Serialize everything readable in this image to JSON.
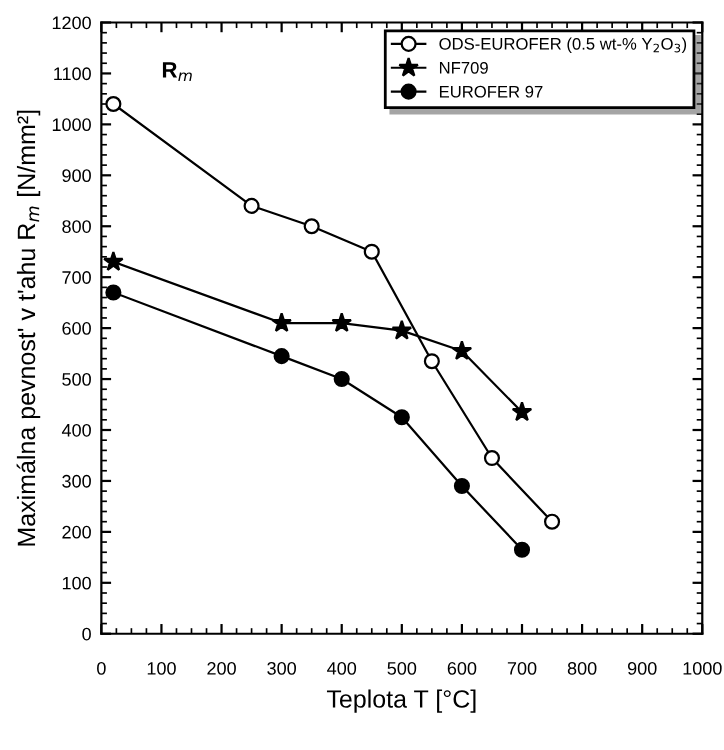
{
  "chart_data": {
    "type": "line",
    "xlabel": "Teplota T [°C]",
    "ylabel": "Maximálna pevnost' v t'ahu R$_{m}$ [N/mm²]",
    "annotations": [
      "R$_{m}$"
    ],
    "xlim": [
      0,
      1000
    ],
    "ylim": [
      0,
      1200
    ],
    "xticks": [
      0,
      100,
      200,
      300,
      400,
      500,
      600,
      700,
      800,
      900,
      1000
    ],
    "yticks": [
      0,
      100,
      200,
      300,
      400,
      500,
      600,
      700,
      800,
      900,
      1000,
      1100,
      1200
    ],
    "grid": false,
    "legend": "top right",
    "line_style": "solid",
    "series": [
      {
        "name": "ODS-EUROFER (0.5 wt-% Y$_{2}$O$_{3}$)",
        "color": "#ffffff",
        "marker": "circle",
        "x": [
          20,
          250,
          350,
          450,
          550,
          650,
          750
        ],
        "values": [
          1040,
          840,
          800,
          750,
          535,
          345,
          220
        ]
      },
      {
        "name": "NF709",
        "color": "#000000",
        "marker": "star",
        "x": [
          20,
          300,
          400,
          500,
          600,
          700
        ],
        "values": [
          730,
          610,
          610,
          595,
          555,
          435
        ]
      },
      {
        "name": "EUROFER 97",
        "color": "#000000",
        "marker": "circle",
        "x": [
          20,
          300,
          400,
          500,
          600,
          700
        ],
        "values": [
          670,
          545,
          500,
          425,
          290,
          165
        ]
      }
    ]
  }
}
